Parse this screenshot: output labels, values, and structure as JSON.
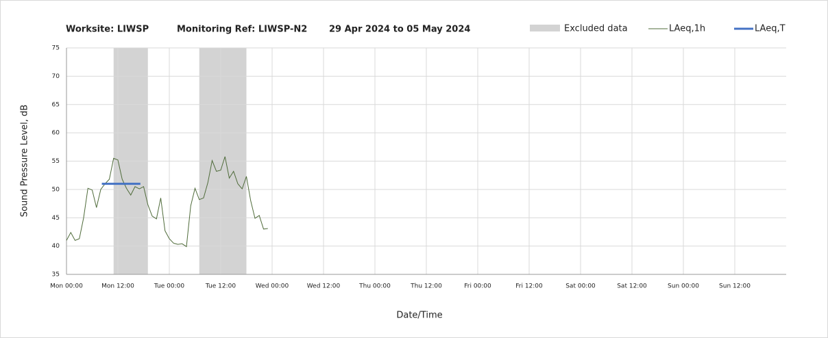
{
  "chart_data": {
    "type": "line",
    "title": "Worksite: LIWSP",
    "monitoring_ref": "Monitoring Ref: LIWSP-N2",
    "date_range": "29 Apr 2024 to 05 May 2024",
    "x_label": "Date/Time",
    "y_label": "Sound Pressure Level, dB",
    "xlim": [
      0,
      168
    ],
    "xticks": [
      {
        "value": 0,
        "label": "Mon 00:00"
      },
      {
        "value": 12,
        "label": "Mon 12:00"
      },
      {
        "value": 24,
        "label": "Tue 00:00"
      },
      {
        "value": 36,
        "label": "Tue 12:00"
      },
      {
        "value": 48,
        "label": "Wed 00:00"
      },
      {
        "value": 60,
        "label": "Wed 12:00"
      },
      {
        "value": 72,
        "label": "Thu 00:00"
      },
      {
        "value": 84,
        "label": "Thu 12:00"
      },
      {
        "value": 96,
        "label": "Fri 00:00"
      },
      {
        "value": 108,
        "label": "Fri 12:00"
      },
      {
        "value": 120,
        "label": "Sat 00:00"
      },
      {
        "value": 132,
        "label": "Sat 12:00"
      },
      {
        "value": 144,
        "label": "Sun 00:00"
      },
      {
        "value": 156,
        "label": "Sun 12:00"
      }
    ],
    "ylim": [
      35,
      75
    ],
    "yticks": [
      35,
      40,
      45,
      50,
      55,
      60,
      65,
      70,
      75
    ],
    "grid": true,
    "excluded": {
      "name": "Excluded data",
      "color": "#d3d3d3",
      "ranges": [
        [
          11,
          19
        ],
        [
          31,
          42
        ]
      ]
    },
    "series": [
      {
        "name": "LAeq,1h",
        "color": "#4f6b3a",
        "width": 1,
        "x": [
          0,
          1,
          2,
          3,
          4,
          5,
          6,
          7,
          8,
          9,
          10,
          11,
          12,
          13,
          14,
          15,
          16,
          17,
          18,
          19,
          20,
          21,
          22,
          23,
          24,
          25,
          26,
          27,
          28,
          29,
          30,
          31,
          32,
          33,
          34,
          35,
          36,
          37,
          38,
          39,
          40,
          41,
          42,
          43,
          44,
          45,
          46,
          47
        ],
        "values": [
          41,
          42.4,
          41,
          41.3,
          45,
          50.2,
          49.9,
          46.8,
          50,
          51,
          51.8,
          55.5,
          55.2,
          51.8,
          50.2,
          49,
          50.5,
          50.1,
          50.5,
          47.3,
          45.3,
          44.8,
          48.5,
          42.7,
          41.3,
          40.5,
          40.3,
          40.4,
          39.9,
          47.1,
          50.2,
          48.2,
          48.5,
          51.2,
          55.1,
          53.2,
          53.4,
          55.8,
          52,
          53.2,
          51,
          50.1,
          52.3,
          48,
          44.9,
          45.4,
          43,
          43.1
        ]
      },
      {
        "name": "LAeq,T",
        "color": "#4472c4",
        "width": 3,
        "x": [
          8.25,
          17.25
        ],
        "values": [
          51,
          51
        ]
      }
    ]
  }
}
